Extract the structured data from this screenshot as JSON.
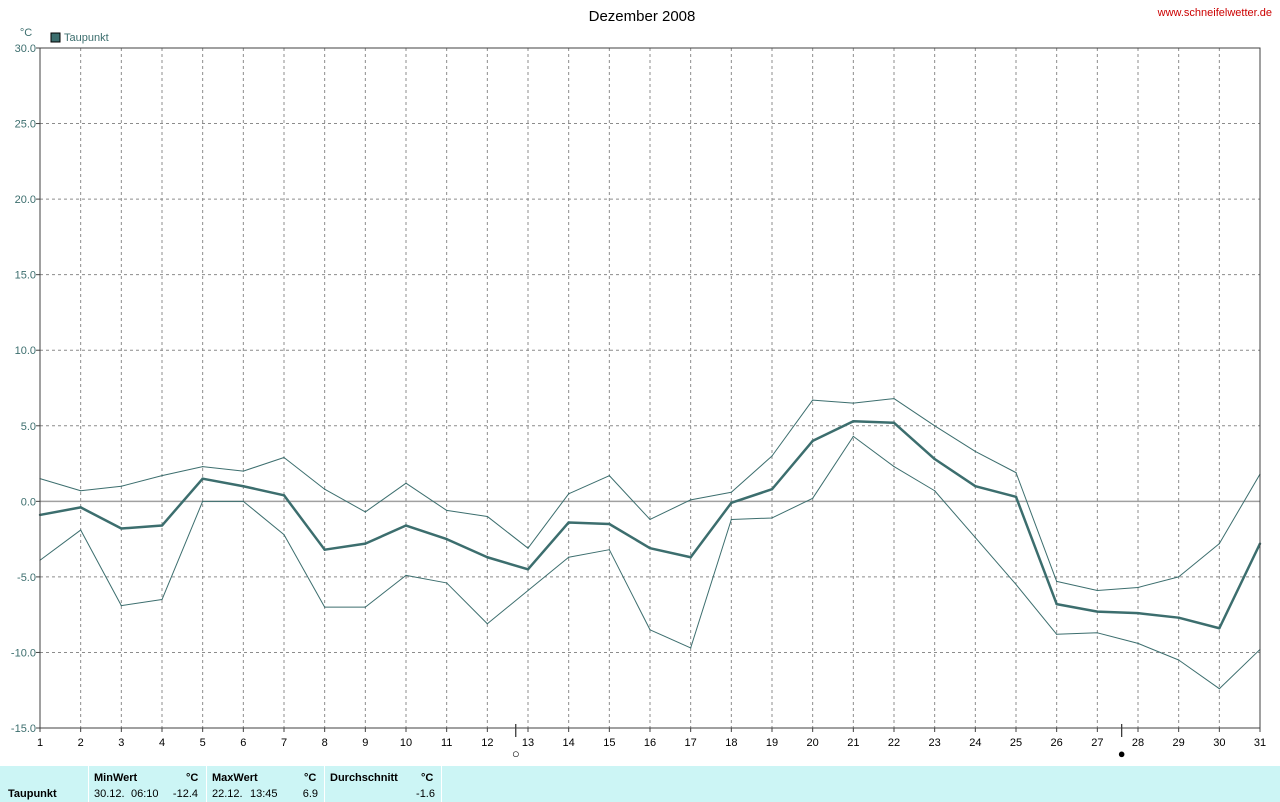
{
  "header": {
    "site": "www.schneifelwetter.de"
  },
  "chart_data": {
    "type": "line",
    "title": "Dezember 2008",
    "ylabel": "°C",
    "xlabel": "",
    "ylim": [
      -15,
      30
    ],
    "xlim": [
      1,
      31
    ],
    "y_ticks": [
      "30.0",
      "25.0",
      "20.0",
      "15.0",
      "10.0",
      "5.0",
      "0.0",
      "-5.0",
      "-10.0",
      "-15.0"
    ],
    "y_tick_values": [
      30,
      25,
      20,
      15,
      10,
      5,
      0,
      -5,
      -10,
      -15
    ],
    "x_ticks": [
      "1",
      "2",
      "3",
      "4",
      "5",
      "6",
      "7",
      "8",
      "9",
      "10",
      "11",
      "12",
      "13",
      "14",
      "15",
      "16",
      "17",
      "18",
      "19",
      "20",
      "21",
      "22",
      "23",
      "24",
      "25",
      "26",
      "27",
      "28",
      "29",
      "30",
      "31"
    ],
    "grid": true,
    "legend_position": "top-left",
    "colors": {
      "series": "#3c6e6e",
      "grid": "#8c8c8c",
      "zero_line": "#a0a0a0",
      "axis_text": "#3c6e6e"
    },
    "x": [
      1,
      2,
      3,
      4,
      5,
      6,
      7,
      8,
      9,
      10,
      11,
      12,
      13,
      14,
      15,
      16,
      17,
      18,
      19,
      20,
      21,
      22,
      23,
      24,
      25,
      26,
      27,
      28,
      29,
      30,
      31
    ],
    "series": [
      {
        "name": "Taupunkt",
        "role": "mean",
        "values": [
          -0.9,
          -0.4,
          -1.8,
          -1.6,
          1.5,
          1.0,
          0.4,
          -3.2,
          -2.8,
          -1.6,
          -2.5,
          -3.7,
          -4.5,
          -1.4,
          -1.5,
          -3.1,
          -3.7,
          -0.1,
          0.8,
          4.0,
          5.3,
          5.2,
          2.8,
          1.0,
          0.3,
          -6.8,
          -7.3,
          -7.4,
          -7.7,
          -8.4,
          -2.8
        ]
      },
      {
        "role": "max",
        "values": [
          1.5,
          0.7,
          1.0,
          1.7,
          2.3,
          2.0,
          2.9,
          0.8,
          -0.7,
          1.2,
          -0.6,
          -1.0,
          -3.1,
          0.5,
          1.7,
          -1.2,
          0.1,
          0.6,
          3.0,
          6.7,
          6.5,
          6.8,
          5.0,
          3.3,
          1.9,
          -5.3,
          -5.9,
          -5.7,
          -5.0,
          -2.8,
          1.8
        ]
      },
      {
        "role": "min",
        "values": [
          -3.9,
          -1.9,
          -6.9,
          -6.5,
          0.0,
          0.0,
          -2.2,
          -7.0,
          -7.0,
          -4.9,
          -5.4,
          -8.1,
          -5.9,
          -3.7,
          -3.2,
          -8.5,
          -9.7,
          -1.2,
          -1.1,
          0.2,
          4.3,
          2.3,
          0.7,
          -2.4,
          -5.5,
          -8.8,
          -8.7,
          -9.4,
          -10.5,
          -12.4,
          -9.8
        ]
      }
    ],
    "moon_phases": [
      {
        "day": 12.7,
        "symbol": "○"
      },
      {
        "day": 27.6,
        "symbol": "●"
      }
    ]
  },
  "stats": {
    "row_label": "Taupunkt",
    "min": {
      "header": "MinWert",
      "unit": "°C",
      "date": "30.12.",
      "time": "06:10",
      "value": "-12.4"
    },
    "max": {
      "header": "MaxWert",
      "unit": "°C",
      "date": "22.12.",
      "time": "13:45",
      "value": "6.9"
    },
    "avg": {
      "header": "Durchschnitt",
      "unit": "°C",
      "value": "-1.6"
    }
  }
}
